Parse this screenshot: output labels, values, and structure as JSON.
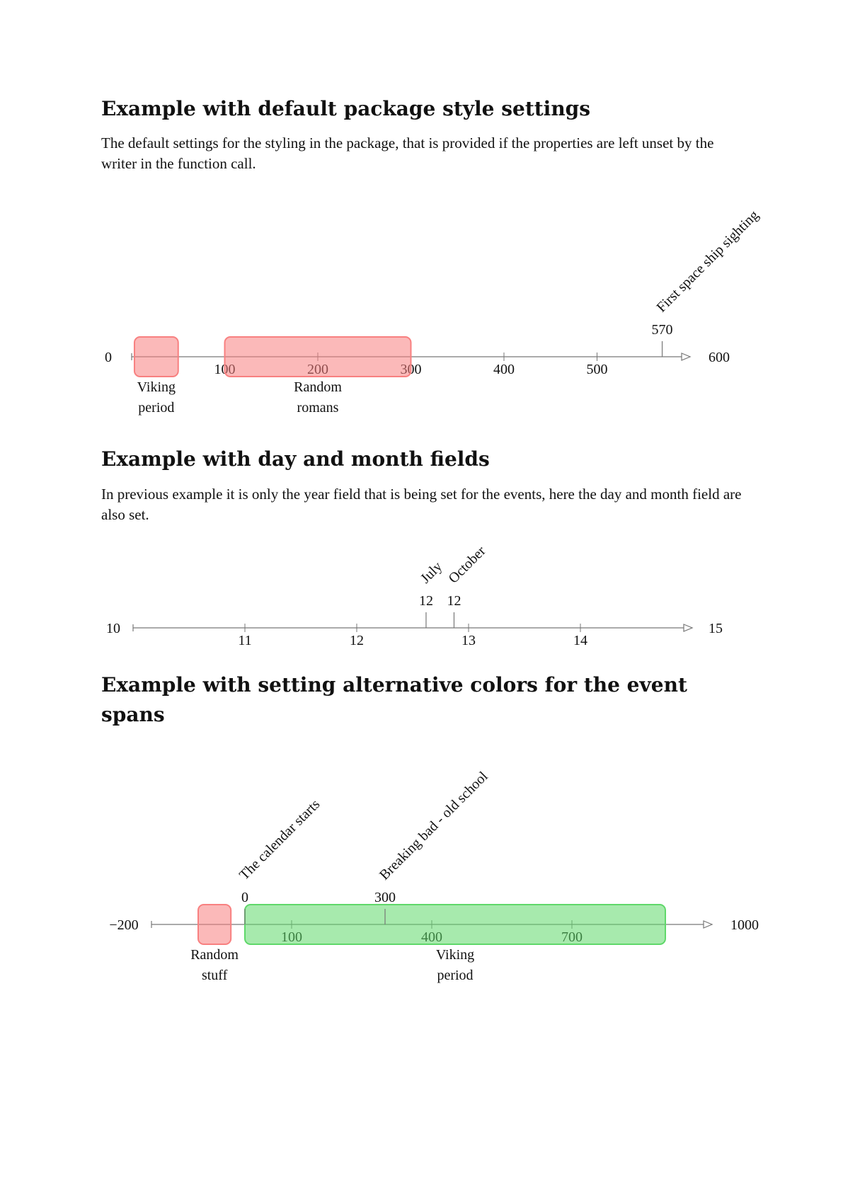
{
  "sections": [
    {
      "heading": "Example with default package style settings",
      "paragraph": "The default settings for the styling in the package, that is provided if the properties are left unset by the writer in the function call.",
      "timeline": {
        "start": 0,
        "end": 600,
        "start_label": "0",
        "end_label": "600",
        "ticks": [
          "100",
          "200",
          "300",
          "400",
          "500"
        ],
        "spans": [
          {
            "from": 3,
            "to": 50,
            "line1": "Viking",
            "line2": "period",
            "color": "#f88080"
          },
          {
            "from": 100,
            "to": 300,
            "line1": "Random",
            "line2": "romans",
            "color": "#f88080"
          }
        ],
        "events": [
          {
            "at": 570,
            "value": "570",
            "name": "First space ship sighting"
          }
        ]
      }
    },
    {
      "heading": "Example with day and month fields",
      "paragraph": "In previous example it is only the year field that is being set for the events, here the day and month field are also set.",
      "timeline": {
        "start": 10,
        "end": 15,
        "start_label": "10",
        "end_label": "15",
        "ticks": [
          "11",
          "12",
          "13",
          "14"
        ],
        "spans": [],
        "events": [
          {
            "at": 12.62,
            "value": "12",
            "name": "July"
          },
          {
            "at": 12.87,
            "value": "12",
            "name": "October"
          }
        ]
      }
    },
    {
      "heading": "Example with setting alternative colors for the event spans",
      "paragraph": "",
      "timeline": {
        "start": -200,
        "end": 1000,
        "start_label": "−200",
        "end_label": "1000",
        "ticks": [
          "100",
          "400",
          "700"
        ],
        "spans": [
          {
            "from": -100,
            "to": -30,
            "line1": "Random",
            "line2": "stuff",
            "color": "#f88080"
          },
          {
            "from": 0,
            "to": 900,
            "line1": "Viking",
            "line2": "period",
            "color": "#5fd86a"
          }
        ],
        "events": [
          {
            "at": 0,
            "value": "0",
            "name": "The calendar starts"
          },
          {
            "at": 300,
            "value": "300",
            "name": "Breaking bad -  old school"
          }
        ]
      }
    }
  ]
}
